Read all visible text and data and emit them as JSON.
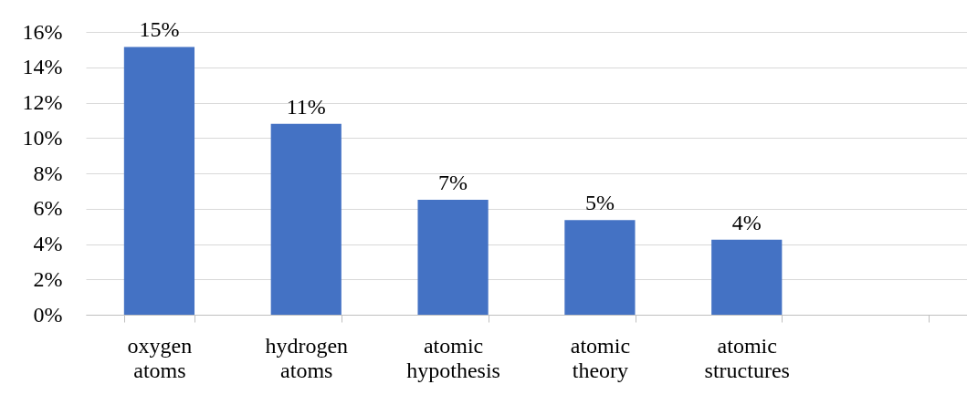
{
  "chart_data": {
    "type": "bar",
    "categories": [
      "oxygen atoms",
      "hydrogen atoms",
      "atomic hypothesis",
      "atomic theory",
      "atomic structures",
      null
    ],
    "values": [
      15.15,
      10.8,
      6.5,
      5.35,
      4.25,
      null
    ],
    "value_labels": [
      "15%",
      "11%",
      "7%",
      "5%",
      "4%",
      null
    ],
    "color": "#4472c4",
    "ylim": [
      0,
      16
    ],
    "yticks": [
      {
        "value": 0,
        "label": "0%"
      },
      {
        "value": 2,
        "label": "2%"
      },
      {
        "value": 4,
        "label": "4%"
      },
      {
        "value": 6,
        "label": "6%"
      },
      {
        "value": 8,
        "label": "8%"
      },
      {
        "value": 10,
        "label": "10%"
      },
      {
        "value": 12,
        "label": "12%"
      },
      {
        "value": 14,
        "label": "14%"
      },
      {
        "value": 16,
        "label": "16%"
      }
    ],
    "grid": "y"
  }
}
